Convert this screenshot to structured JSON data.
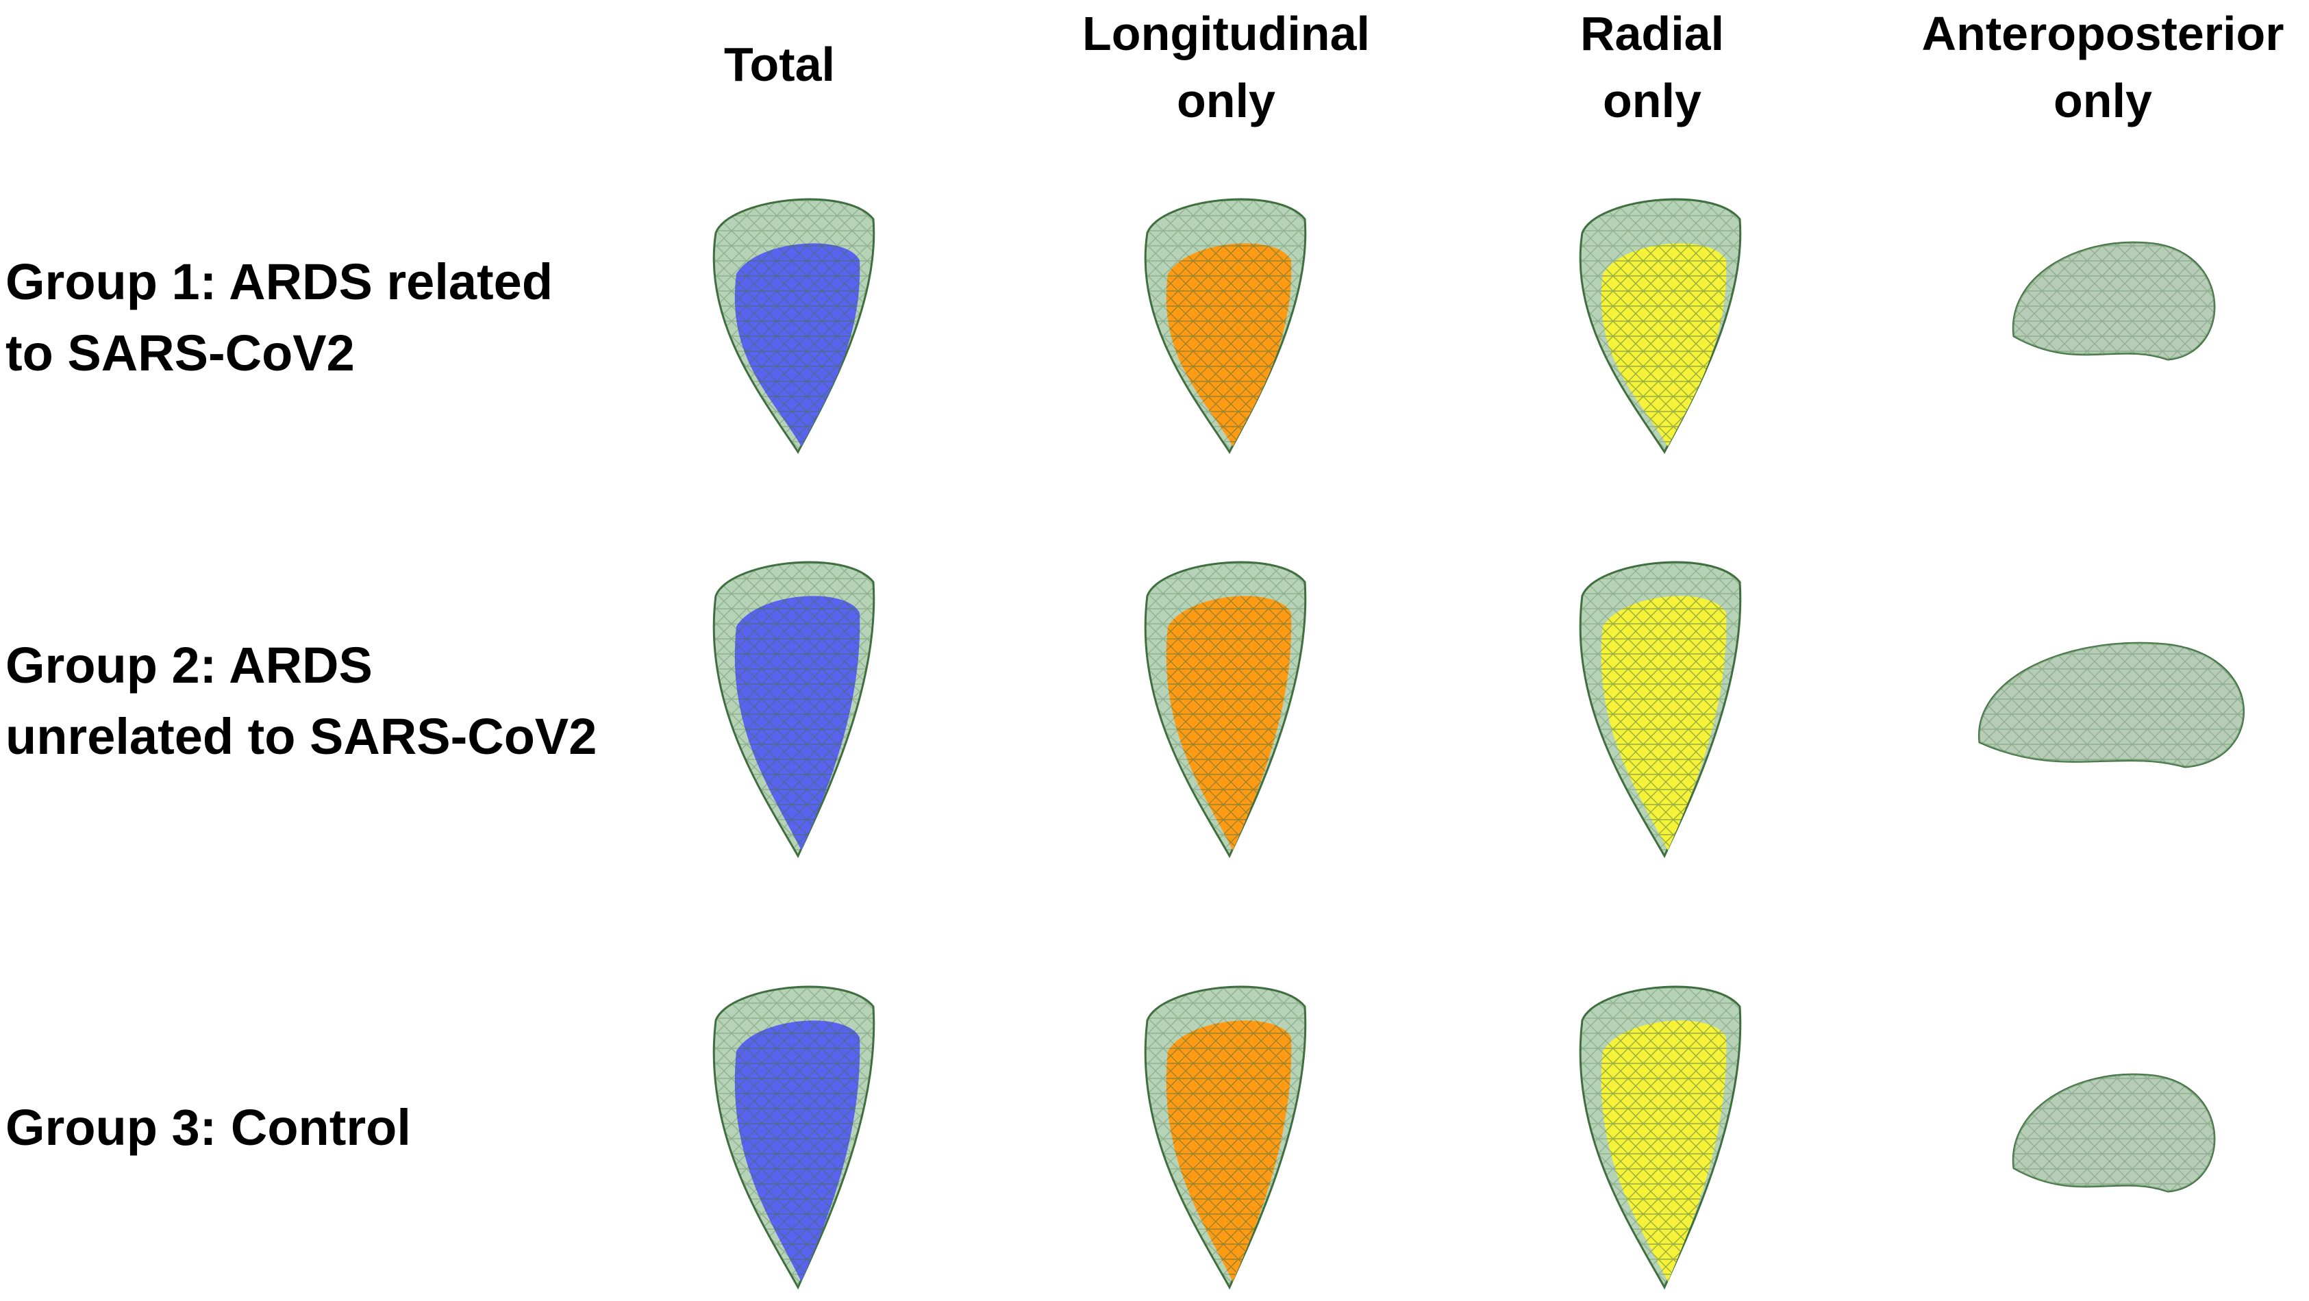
{
  "columns": [
    {
      "id": "total",
      "lines": [
        "Total"
      ]
    },
    {
      "id": "longitudinal",
      "lines": [
        "Longitudinal",
        "only"
      ]
    },
    {
      "id": "radial",
      "lines": [
        "Radial",
        "only"
      ]
    },
    {
      "id": "anteroposterior",
      "lines": [
        "Anteroposterior",
        "only"
      ]
    }
  ],
  "rows": [
    {
      "id": "group1",
      "lines": [
        "Group 1: ARDS related",
        "to SARS-CoV2"
      ]
    },
    {
      "id": "group2",
      "lines": [
        "Group 2: ARDS",
        "unrelated to SARS-CoV2"
      ]
    },
    {
      "id": "group3",
      "lines": [
        "Group 3: Control"
      ]
    }
  ],
  "colors": {
    "mesh_fill": "#9fc49f",
    "mesh_line": "#3f6f3f",
    "total": "#5a62f0",
    "longitudinal": "#ff9a14",
    "radial": "#f6f23a",
    "anteroposterior": "#d8d8d8"
  }
}
